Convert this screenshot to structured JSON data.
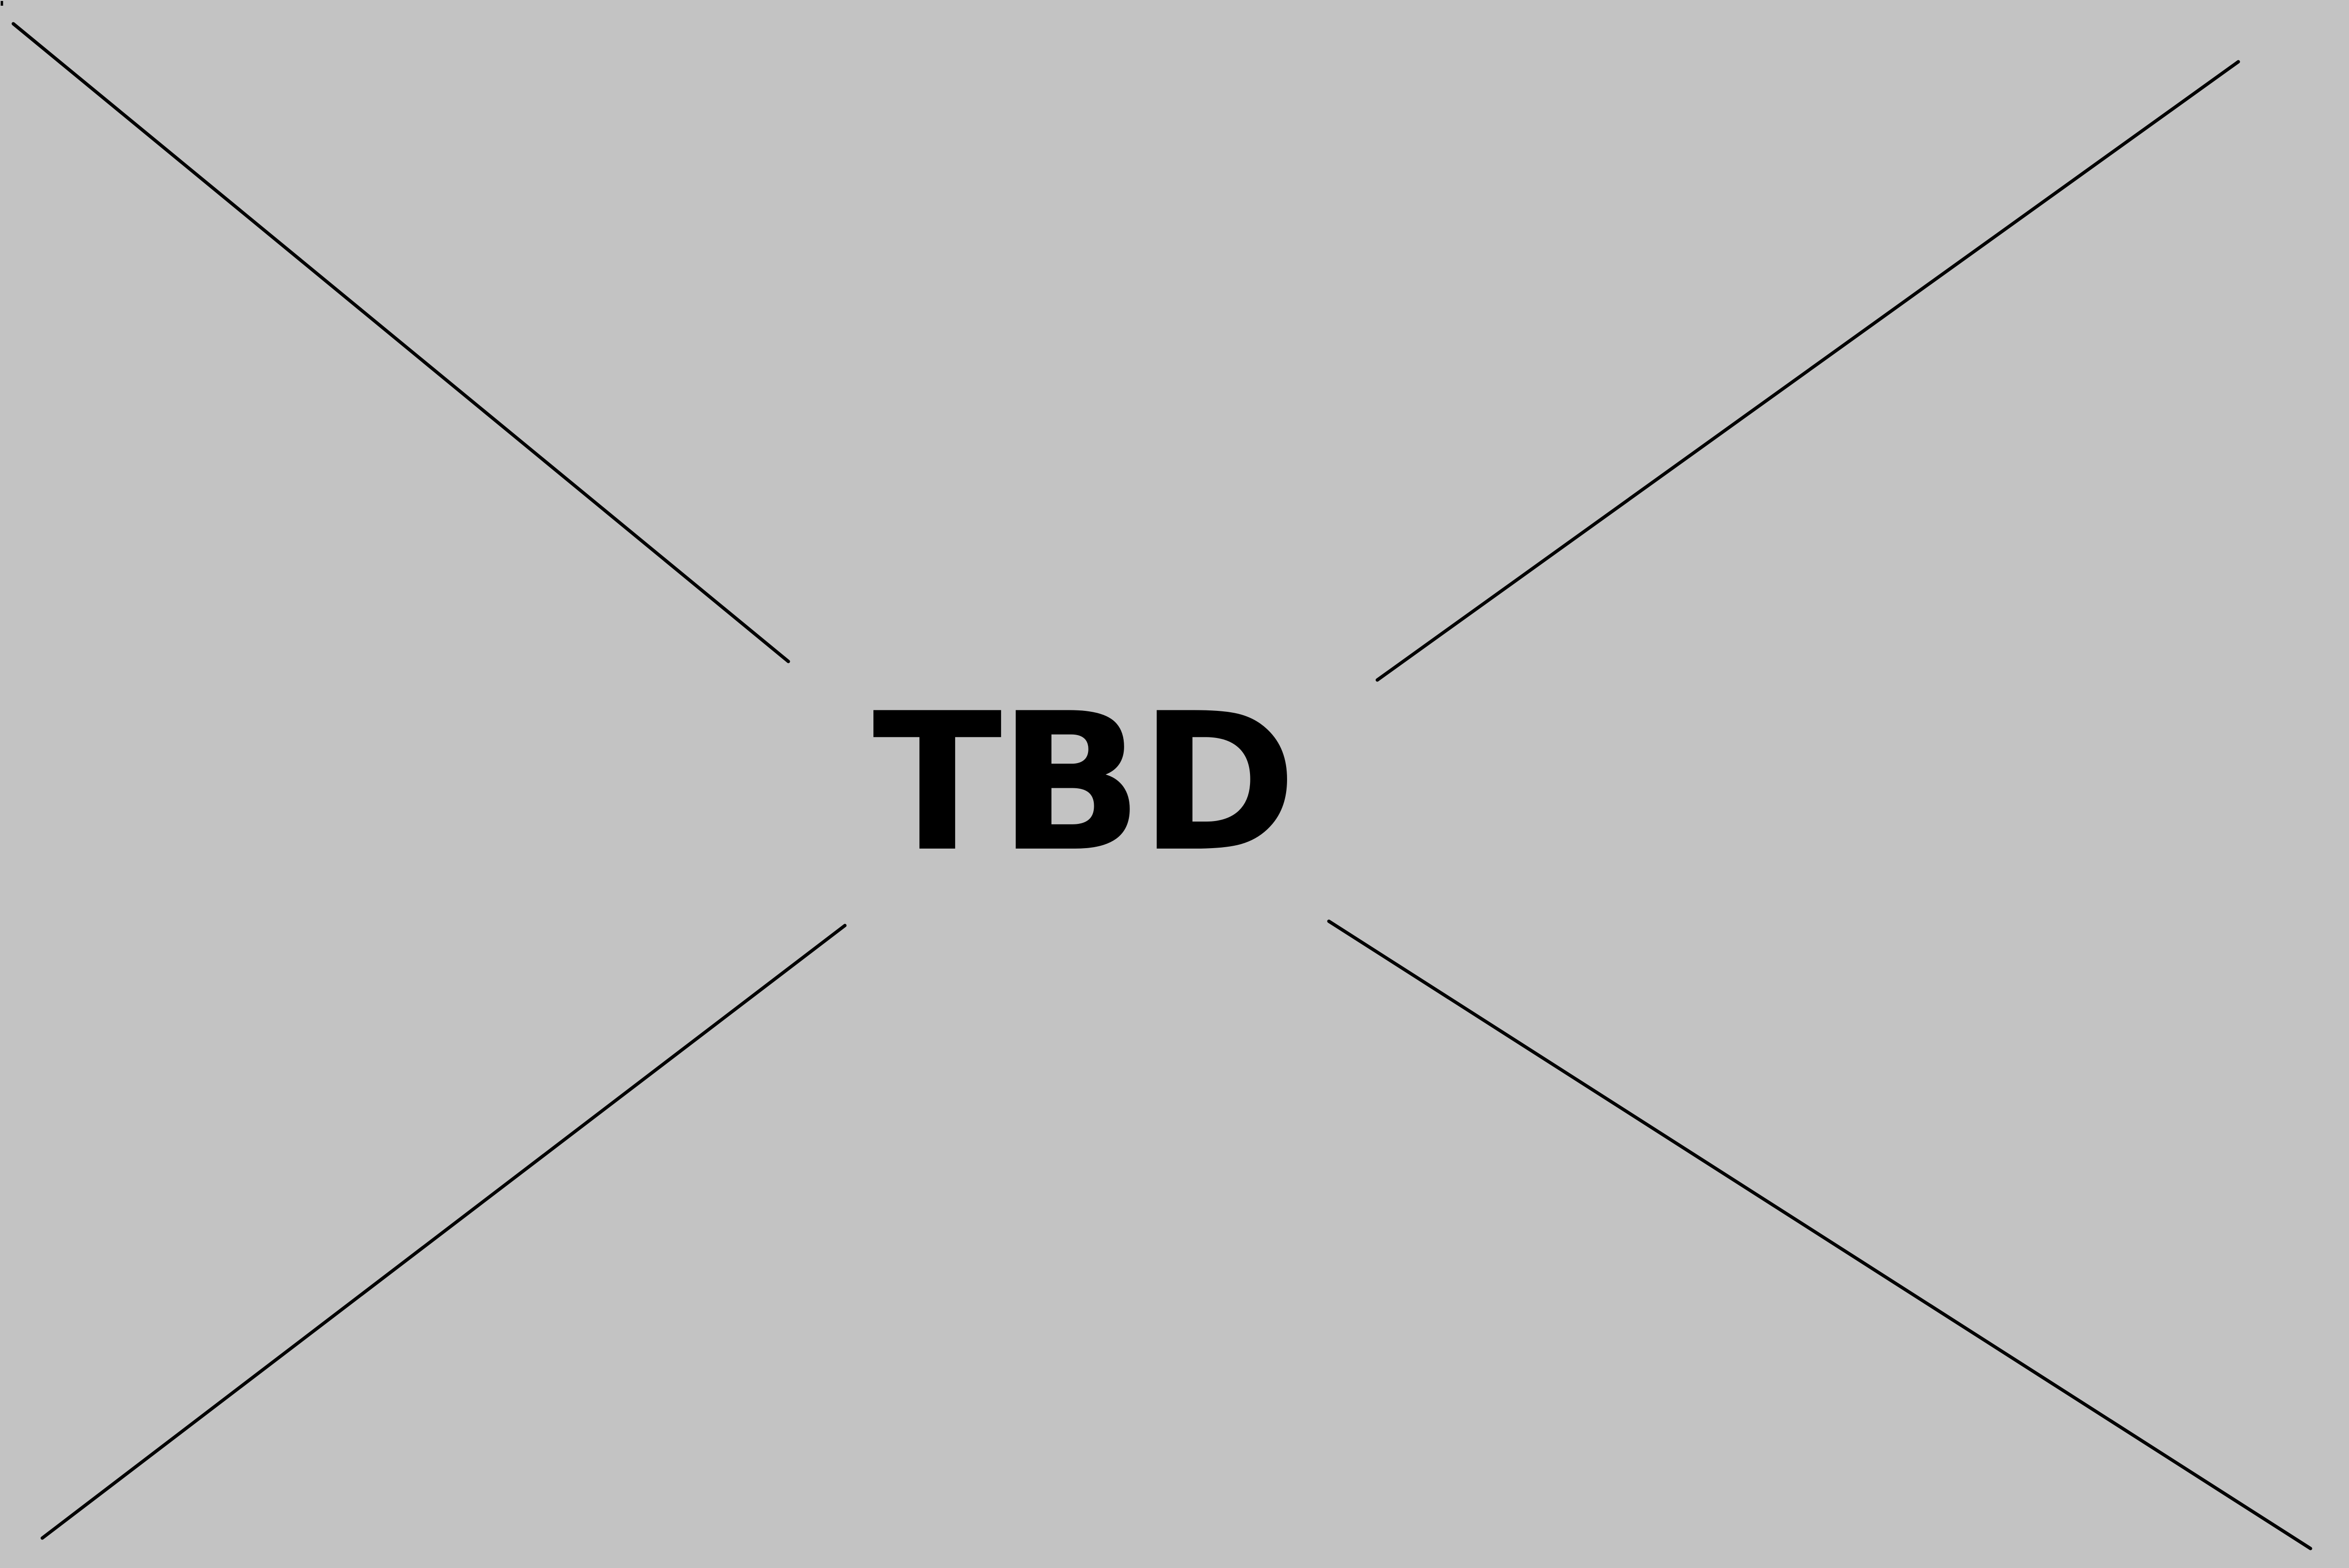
{
  "placeholder": {
    "label": "TBD",
    "background_color": "#c3c3c3",
    "line_color": "#000000",
    "text_color": "#000000"
  }
}
